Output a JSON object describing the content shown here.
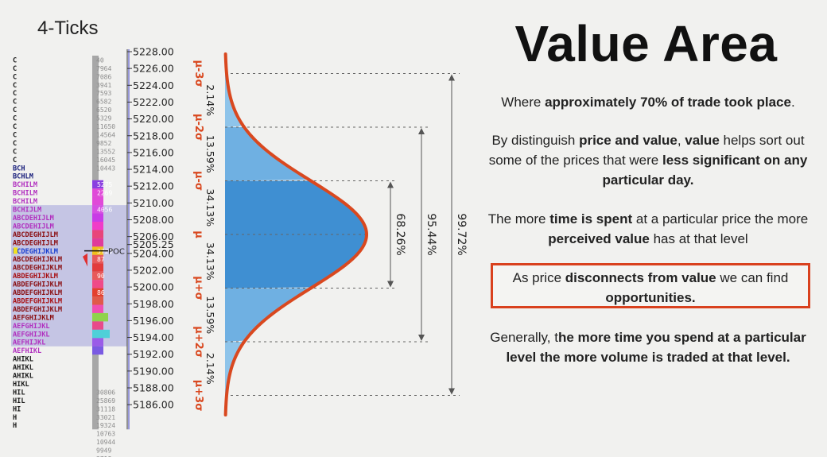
{
  "profile": {
    "title": "4-Ticks",
    "poc_label": "POC",
    "prices": [
      "5228.00",
      "5226.00",
      "5224.00",
      "5222.00",
      "5220.00",
      "5218.00",
      "5216.00",
      "5214.00",
      "5212.00",
      "5210.00",
      "5208.00",
      "5206.00",
      "5205.25",
      "5204.00",
      "5202.00",
      "5200.00",
      "5198.00",
      "5196.00",
      "5194.00",
      "5192.00",
      "5190.00",
      "5188.00",
      "5186.00"
    ],
    "letter_rows": [
      "C",
      "C",
      "C",
      "C",
      "C",
      "C",
      "C",
      "C",
      "C",
      "C",
      "C",
      "C",
      "C",
      "BCH",
      "BCHLM",
      "BCHILM",
      "BCHILM",
      "BCHILM",
      "BCHIJLM",
      "ABCDEHIJLM",
      "ABCDEHIJLM",
      "ABCDEGHIJLM",
      "ABCDEGHIJLM",
      "BCDEGHIJKLM",
      "ABCDEGHIJKLM",
      "ABCDEGHIJKLM",
      "ABDEGHIJKLM",
      "ABDEFGHIJKLM",
      "ABDEFGHIJKLM",
      "ABDEFGHIJKLM",
      "ABDEFGHIJKLM",
      "AEFGHIJKLM",
      "AEFGHIJKL",
      "AEFGHIJKL",
      "AEFHIJKL",
      "AEFHIKL",
      "AHIKL",
      "AHIKL",
      "AHIKL",
      "HIKL",
      "HIL",
      "HIL",
      "HI",
      "H",
      "H"
    ],
    "volumes": [
      "40",
      "7964",
      "7086",
      "3941",
      "7593",
      "6582",
      "6520",
      "5329",
      "11650",
      "14564",
      "9852",
      "13552",
      "16045",
      "10443",
      "",
      "",
      "",
      "",
      "",
      "",
      "",
      "",
      "",
      "",
      "",
      "",
      "",
      "",
      "",
      "",
      "",
      "",
      "",
      "",
      "",
      "",
      "",
      "",
      "",
      "",
      "30806",
      "25869",
      "31118",
      "33021",
      "19324",
      "10763",
      "10944",
      "9949",
      "3718"
    ],
    "color_buckets": [
      "C",
      "C",
      "C",
      "C",
      "C",
      "C",
      "C",
      "C",
      "C",
      "C",
      "C",
      "C",
      "C",
      "B",
      "B",
      "M",
      "M",
      "M",
      "M",
      "M",
      "M",
      "A",
      "A",
      "P",
      "A",
      "A",
      "R",
      "A",
      "A",
      "G",
      "A",
      "A",
      "M",
      "M",
      "M",
      "M",
      "K",
      "K",
      "K",
      "K",
      "K",
      "K",
      "K",
      "K",
      "K"
    ],
    "bar_values": [
      "",
      "",
      "",
      "",
      "",
      "",
      "",
      "",
      "",
      "",
      "",
      "",
      "",
      "",
      "",
      "5275",
      "2269",
      "",
      "4056",
      "",
      "",
      "",
      "",
      "3720",
      "87",
      "",
      "90",
      "",
      "86",
      "",
      "",
      "",
      "",
      "",
      "",
      "",
      "",
      "",
      "",
      "",
      "",
      "",
      "",
      "",
      ""
    ]
  },
  "curve": {
    "levels": [
      "μ-3σ",
      "μ-2σ",
      "μ-σ",
      "μ",
      "μ+σ",
      "μ+2σ",
      "μ+3σ"
    ],
    "percents": [
      "2.14%",
      "13.59%",
      "34.13%",
      "34.13%",
      "13.59%",
      "2.14%"
    ],
    "spans": [
      "68.26%",
      "95.44%",
      "99.72%"
    ],
    "colors": {
      "curve": "#d9481f",
      "outer": "#8ec4ea",
      "mid": "#6fb0e2",
      "inner": "#3f8fd2",
      "level_text": "#d9481f"
    }
  },
  "text": {
    "title": "Value Area",
    "p1": {
      "a": "Where ",
      "b": "approximately 70% of trade took place",
      "c": "."
    },
    "p2": {
      "a": "By distinguish ",
      "b": "price and value",
      "c": ", ",
      "d": "value",
      " e": "",
      "e2": " helps sort out some of the prices that were ",
      "f": "less significant on any particular day."
    },
    "p3": {
      "a": "The more ",
      "b": "time is spent",
      "c": " at a particular price the more ",
      "d": "perceived value",
      "e": " has at that level"
    },
    "p4": {
      "a": "As price ",
      "b": "disconnects from value",
      "c": " we can find ",
      "d": "opportunities."
    },
    "p5": {
      "a": "Generally, t",
      "b": "he more time you spend at a particular level the more volume is traded at that level."
    }
  }
}
